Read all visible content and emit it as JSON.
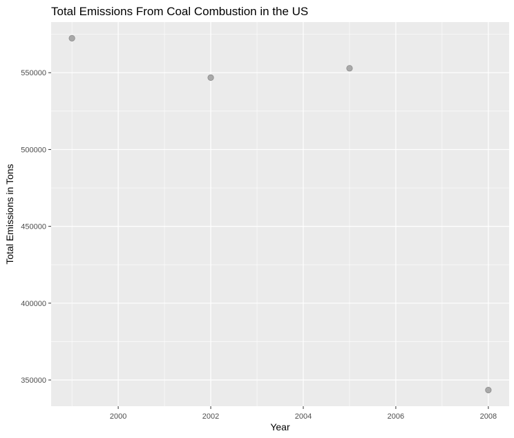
{
  "chart_data": {
    "type": "scatter",
    "title": "Total Emissions From Coal Combustion in the US",
    "xlabel": "Year",
    "ylabel": "Total Emissions in Tons",
    "x": [
      1999,
      2002,
      2005,
      2008
    ],
    "y": [
      572425,
      546789,
      552881,
      343432
    ],
    "xlim": [
      1998.55,
      2008.45
    ],
    "ylim": [
      332928,
      582929
    ],
    "x_ticks": [
      "2000",
      "2002",
      "2004",
      "2006",
      "2008"
    ],
    "y_ticks": [
      "350000",
      "400000",
      "450000",
      "500000",
      "550000"
    ],
    "grid": true,
    "colors": {
      "panel": "#ebebeb",
      "grid": "#ffffff",
      "point": "#a9a9a9",
      "point_stroke": "#8a8a8a"
    }
  }
}
